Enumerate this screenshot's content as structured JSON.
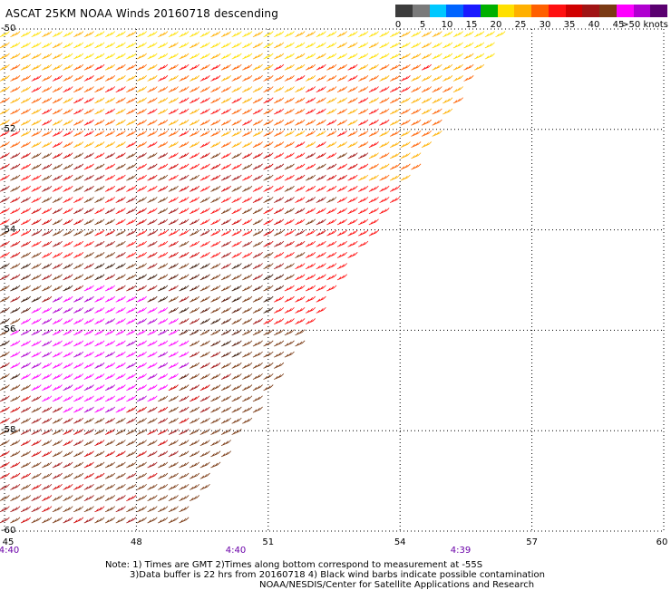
{
  "title": "ASCAT 25KM NOAA Winds 20160718 descending",
  "legend": {
    "labels": [
      "0",
      "5",
      "10",
      "15",
      "20",
      "25",
      "30",
      "35",
      "40",
      "45",
      ">50 knots"
    ],
    "colors": [
      "#3c3c3c",
      "#7a7a7a",
      "#00c8ff",
      "#0064ff",
      "#1a1aff",
      "#00b000",
      "#ffe000",
      "#ffb000",
      "#ff6000",
      "#ff1010",
      "#d00000",
      "#a01414",
      "#7a3a14",
      "#ff00ff",
      "#b000d0",
      "#5a0070"
    ]
  },
  "axes": {
    "x_ticks": [
      "45",
      "48",
      "51",
      "54",
      "57",
      "60"
    ],
    "y_ticks": [
      "-50",
      "-52",
      "-54",
      "-56",
      "-58",
      "-60"
    ],
    "x_range": [
      45,
      60
    ],
    "y_range": [
      -50,
      -60
    ]
  },
  "times": [
    "4:40",
    "4:40",
    "4:39"
  ],
  "notes": {
    "line1": "Note: 1) Times are GMT 2)Times along bottom correspond to measurement at -55S",
    "line2": "3)Data buffer is 22 hrs from 20160718 4) Black wind barbs indicate possible contamination",
    "line3": "NOAA/NESDIS/Center for Satellite Applications and Research"
  }
}
